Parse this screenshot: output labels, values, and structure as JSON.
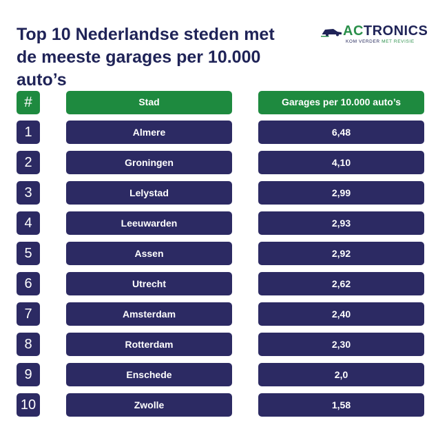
{
  "header": {
    "title_line1": "Top 10 Nederlandse steden met",
    "title_line2": "de meeste garages per 10.000 auto’s"
  },
  "logo": {
    "name_prefix": "AC",
    "name_rest": "TRONICS",
    "tagline_dark": "KOM VERDER ",
    "tagline_green": "MET REVISIE",
    "icon": "car-icon",
    "colors": {
      "navy": "#1f2357",
      "green": "#2a8f4a"
    }
  },
  "colors": {
    "header_bg": "#1e8a3f",
    "row_bg": "#2c2a63",
    "title": "#1f2357"
  },
  "chart_data": {
    "type": "table",
    "columns": [
      "#",
      "Stad",
      "Garages per 10.000 auto’s"
    ],
    "rows": [
      {
        "rank": "1",
        "city": "Almere",
        "value": "6,48"
      },
      {
        "rank": "2",
        "city": "Groningen",
        "value": "4,10"
      },
      {
        "rank": "3",
        "city": "Lelystad",
        "value": "2,99"
      },
      {
        "rank": "4",
        "city": "Leeuwarden",
        "value": "2,93"
      },
      {
        "rank": "5",
        "city": "Assen",
        "value": "2,92"
      },
      {
        "rank": "6",
        "city": "Utrecht",
        "value": "2,62"
      },
      {
        "rank": "7",
        "city": "Amsterdam",
        "value": "2,40"
      },
      {
        "rank": "8",
        "city": "Rotterdam",
        "value": "2,30"
      },
      {
        "rank": "9",
        "city": "Enschede",
        "value": "2,0"
      },
      {
        "rank": "10",
        "city": "Zwolle",
        "value": "1,58"
      }
    ]
  }
}
